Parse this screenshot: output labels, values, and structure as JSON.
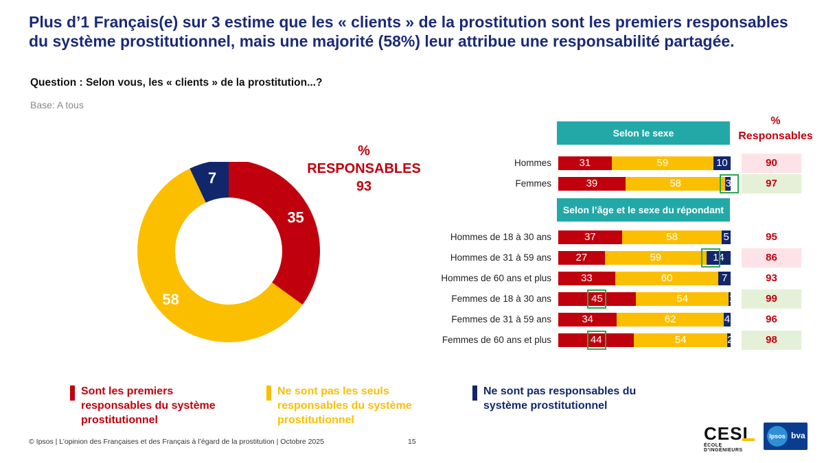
{
  "title": "Plus d’1 Français(e) sur 3 estime que les « clients » de la prostitution sont les premiers responsables du système prostitutionnel, mais une majorité (58%) leur attribue une responsabilité partagée.",
  "question": "Question : Selon vous, les « clients » de la prostitution...?",
  "base": "Base: A tous",
  "donut_responsables": {
    "pct": "%",
    "label": "RESPONSABLES",
    "value": "93"
  },
  "colors": {
    "red": "#c0000c",
    "yellow": "#fcbf00",
    "navy": "#12266b",
    "teal": "#23a8a8",
    "navy_title": "#1b2a78"
  },
  "sections": {
    "sexe": "Selon le sexe",
    "age": "Selon l’âge et le sexe du répondant"
  },
  "responsables_header": {
    "pct": "%",
    "label": "Responsables"
  },
  "chart_data": [
    {
      "type": "pie",
      "subtype": "donut",
      "labels": [
        "Sont les premiers responsables du système prostitutionnel",
        "Ne sont pas les seuls responsables du système prostitutionnel",
        "Ne sont pas responsables du système prostitutionnel"
      ],
      "values": [
        35,
        58,
        7
      ],
      "colors": [
        "#c0000c",
        "#fcbf00",
        "#12266b"
      ],
      "value_labels": [
        "35",
        "58",
        "7"
      ]
    },
    {
      "type": "bar",
      "orientation": "horizontal",
      "stacked": true,
      "categories": [
        "Hommes",
        "Femmes",
        "Hommes de 18 à 30 ans",
        "Hommes de 31 à 59 ans",
        "Hommes de 60 ans et plus",
        "Femmes de 18 à 30 ans",
        "Femmes de 31 à 59 ans",
        "Femmes de 60 ans et plus"
      ],
      "series": [
        {
          "name": "Sont les premiers responsables",
          "values": [
            31,
            39,
            37,
            27,
            33,
            45,
            34,
            44
          ]
        },
        {
          "name": "Ne sont pas les seuls responsables",
          "values": [
            59,
            58,
            58,
            59,
            60,
            54,
            62,
            54
          ]
        },
        {
          "name": "Ne sont pas responsables",
          "values": [
            10,
            3,
            5,
            14,
            7,
            1,
            4,
            2
          ]
        }
      ],
      "responsables": [
        "90",
        "97",
        "95",
        "86",
        "93",
        "99",
        "96",
        "98"
      ],
      "responsables_highlight": [
        "pink",
        "green",
        "",
        "pink",
        "",
        "green",
        "",
        "green"
      ],
      "highlighted_cells": [
        {
          "row": 1,
          "series": 2
        },
        {
          "row": 3,
          "series": 2
        },
        {
          "row": 5,
          "series": 0
        },
        {
          "row": 7,
          "series": 0
        }
      ]
    }
  ],
  "legend": [
    {
      "label": "Sont les premiers responsables du système prostitutionnel",
      "color": "#c0000c",
      "text_color": "#c0000c"
    },
    {
      "label": "Ne sont pas les seuls responsables du système prostitutionnel",
      "color": "#fcbf00",
      "text_color": "#fcbf00"
    },
    {
      "label": "Ne sont pas responsables du système prostitutionnel",
      "color": "#12266b",
      "text_color": "#12266b"
    }
  ],
  "footer": "© Ipsos | L’opinion des Françaises et des Français à l’égard de la prostitution | Octobre 2025",
  "page_number": "15",
  "logos": {
    "cesi": "CESI",
    "cesi_sub": "ÉCOLE D’INGÉNIEURS",
    "ipsos": "Ipsos",
    "bva": "bva"
  }
}
